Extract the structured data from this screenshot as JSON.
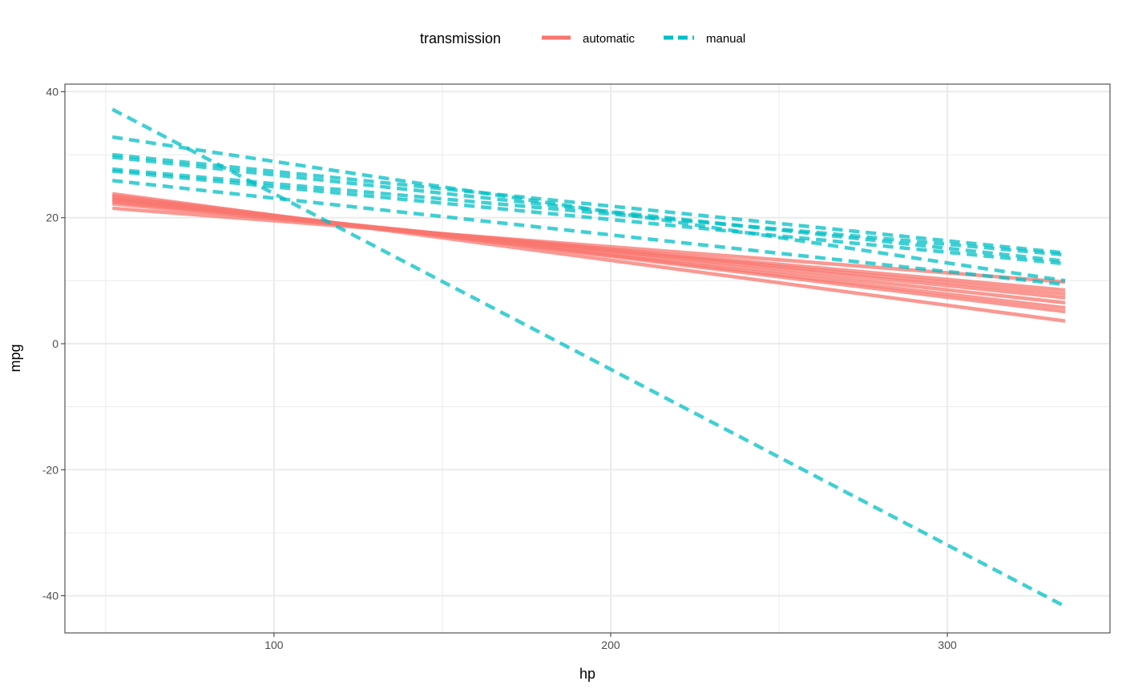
{
  "chart_data": {
    "type": "line",
    "title": "",
    "xlabel": "hp",
    "ylabel": "mpg",
    "xlim": [
      37.9,
      348.3
    ],
    "ylim": [
      -45.9,
      41.2
    ],
    "x_ticks": [
      100,
      200,
      300
    ],
    "y_ticks": [
      -40,
      -20,
      0,
      20,
      40
    ],
    "grid": true,
    "legend": {
      "title": "transmission",
      "position": "top",
      "entries": [
        "automatic",
        "manual"
      ]
    },
    "colors": {
      "automatic": "#F8766D",
      "manual": "#00BFC4"
    },
    "series": [
      {
        "name": "automatic",
        "x": [
          52,
          335
        ],
        "lines": [
          [
            23.8,
            3.6
          ],
          [
            23.5,
            5.1
          ],
          [
            23.2,
            5.7
          ],
          [
            23.0,
            6.5
          ],
          [
            22.8,
            7.3
          ],
          [
            22.5,
            7.9
          ],
          [
            22.2,
            8.5
          ],
          [
            21.5,
            9.8
          ]
        ]
      },
      {
        "name": "manual",
        "x": [
          52,
          335
        ],
        "lines": [
          [
            37.2,
            -41.7
          ],
          [
            32.8,
            10.0
          ],
          [
            30.0,
            14.4
          ],
          [
            29.6,
            13.1
          ],
          [
            27.7,
            14.1
          ],
          [
            27.4,
            12.7
          ],
          [
            25.9,
            9.4
          ]
        ]
      }
    ]
  }
}
